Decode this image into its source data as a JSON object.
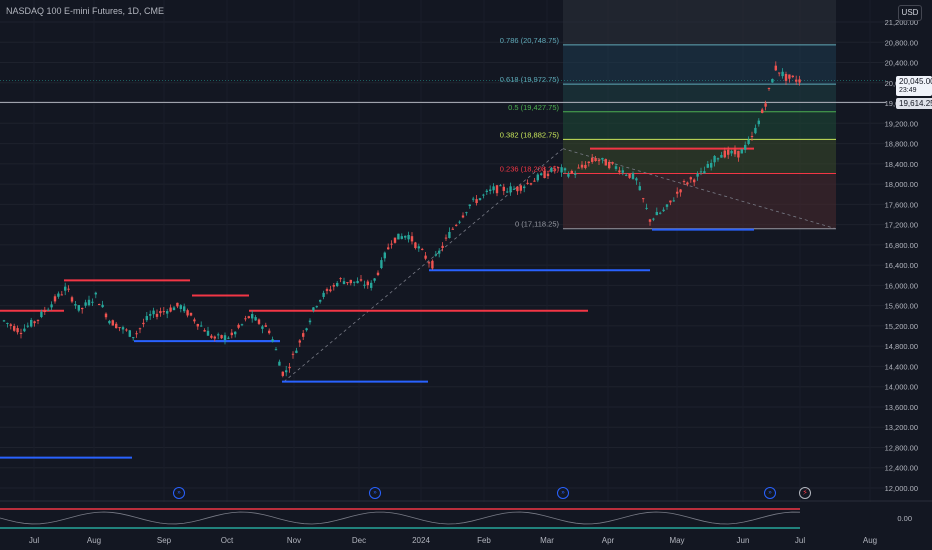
{
  "header": {
    "symbol": "NASDAQ 100 E-mini Futures, 1D, CME"
  },
  "currency": "USD",
  "price_scale": {
    "ticks": [
      "21,200.00",
      "20,800.00",
      "20,400.00",
      "20,000.00",
      "19,600.00",
      "19,200.00",
      "18,800.00",
      "18,400.00",
      "18,000.00",
      "17,600.00",
      "17,200.00",
      "16,800.00",
      "16,400.00",
      "16,000.00",
      "15,600.00",
      "15,200.00",
      "14,800.00",
      "14,400.00",
      "14,000.00",
      "13,600.00",
      "13,200.00",
      "12,800.00",
      "12,400.00",
      "12,000.00"
    ],
    "last_price": "20,045.00",
    "last_price_sub": "23:49",
    "ref_price": "19,614.25",
    "indicator_tick": "0.00"
  },
  "time_axis": {
    "labels": [
      "Jul",
      "Aug",
      "Sep",
      "Oct",
      "Nov",
      "Dec",
      "2024",
      "Feb",
      "Mar",
      "Apr",
      "May",
      "Jun",
      "Jul",
      "Aug"
    ]
  },
  "fib_levels": [
    {
      "label": "0.786 (20,748.75)",
      "value": 20748.75,
      "color": "#5fa9b8"
    },
    {
      "label": "0.618 (19,972.75)",
      "value": 19972.75,
      "color": "#5fa9b8"
    },
    {
      "label": "0.5 (19,427.75)",
      "value": 19427.75,
      "color": "#4caf50"
    },
    {
      "label": "0.382 (18,882.75)",
      "value": 18882.75,
      "color": "#c8e65a"
    },
    {
      "label": "0.236 (18,208.25)",
      "value": 18208.25,
      "color": "#f23645"
    },
    {
      "label": "0 (17,118.25)",
      "value": 17118.25,
      "color": "#9598a1"
    }
  ],
  "chart_data": {
    "type": "candlestick",
    "title": "NASDAQ 100 E-mini Futures, 1D, CME",
    "ylim": [
      11900,
      21400
    ],
    "y_ticks": [
      21200,
      20800,
      20400,
      20000,
      19600,
      19200,
      18800,
      18400,
      18000,
      17600,
      17200,
      16800,
      16400,
      16000,
      15600,
      15200,
      14800,
      14400,
      14000,
      13600,
      13200,
      12800,
      12400,
      12000
    ],
    "x_ticks": [
      "Jul",
      "Aug",
      "Sep",
      "Oct",
      "Nov",
      "Dec",
      "2024",
      "Feb",
      "Mar",
      "Apr",
      "May",
      "Jun",
      "Jul",
      "Aug"
    ],
    "approx_close_path": [
      [
        "Jul",
        15300
      ],
      [
        "Jul",
        15100
      ],
      [
        "Jul",
        15300
      ],
      [
        "Aug",
        15900
      ],
      [
        "Aug",
        15500
      ],
      [
        "Aug",
        15700
      ],
      [
        "Sep",
        15100
      ],
      [
        "Sep",
        15300
      ],
      [
        "Sep",
        15500
      ],
      [
        "Oct",
        14900
      ],
      [
        "Oct",
        15300
      ],
      [
        "Oct",
        15200
      ],
      [
        "Nov",
        14200
      ],
      [
        "Nov",
        15000
      ],
      [
        "Nov",
        15900
      ],
      [
        "Dec",
        16100
      ],
      [
        "Dec",
        16000
      ],
      [
        "Dec",
        16900
      ],
      [
        "2024",
        16900
      ],
      [
        "2024",
        16500
      ],
      [
        "2024",
        17100
      ],
      [
        "Feb",
        17500
      ],
      [
        "Feb",
        17900
      ],
      [
        "Feb",
        18000
      ],
      [
        "Mar",
        18200
      ],
      [
        "Mar",
        18300
      ],
      [
        "Apr",
        18500
      ],
      [
        "Apr",
        18000
      ],
      [
        "Apr",
        17400
      ],
      [
        "May",
        18000
      ],
      [
        "May",
        18500
      ],
      [
        "Jun",
        18800
      ],
      [
        "Jun",
        19600
      ],
      [
        "Jun",
        20200
      ],
      [
        "Jul",
        20045
      ]
    ],
    "support_lines": [
      {
        "y": 12600,
        "color": "blue"
      },
      {
        "y": 14900,
        "color": "blue"
      },
      {
        "y": 14900,
        "color": "blue"
      },
      {
        "y": 14100,
        "color": "blue"
      },
      {
        "y": 16300,
        "color": "blue"
      },
      {
        "y": 17100,
        "color": "blue"
      }
    ],
    "resistance_lines": [
      {
        "y": 15500,
        "color": "red"
      },
      {
        "y": 16100,
        "color": "red"
      },
      {
        "y": 15800,
        "color": "red"
      },
      {
        "y": 15500,
        "color": "red"
      },
      {
        "y": 18700,
        "color": "red"
      }
    ],
    "last_price": 20045.0,
    "ref_price": 19614.25,
    "grid": true,
    "legend": "none"
  },
  "colors": {
    "up": "#26a69a",
    "down": "#ef5350",
    "support": "#2962ff",
    "resistance": "#f23645",
    "background": "#131722"
  },
  "icons": {
    "event": "calendar-event-icon",
    "alert": "lightning-alert-icon"
  }
}
